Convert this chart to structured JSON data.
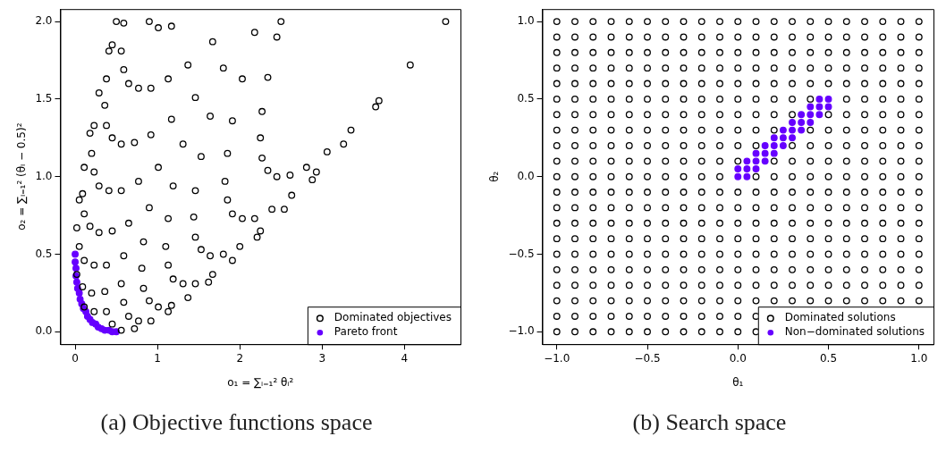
{
  "chart_data": [
    {
      "type": "scatter",
      "title": "(a) Objective functions space",
      "xlabel": "o₁ = ∑ᵢ₌₁² θᵢ²",
      "ylabel": "o₂ = ∑ᵢ₌₁² (θᵢ − 0.5)²",
      "xlim": [
        -0.18,
        4.68
      ],
      "ylim": [
        -0.08,
        2.08
      ],
      "xticks": [
        0,
        1,
        2,
        3,
        4
      ],
      "yticks": [
        {
          "value": 0,
          "label": "0.0"
        },
        {
          "value": 0.5,
          "label": "0.5"
        },
        {
          "value": 1,
          "label": "1.0"
        },
        {
          "value": 1.5,
          "label": "1.5"
        },
        {
          "value": 2,
          "label": "2.0"
        }
      ],
      "legend": "bottom right",
      "marker": "circle",
      "series": [
        {
          "name": "Dominated objectives",
          "color": "#000000",
          "x": [
            0.5,
            2.5,
            0.9,
            1.01,
            1.17,
            0.59,
            0.56,
            0.59,
            0.65,
            0.77,
            0.92,
            1.13,
            1.37,
            1.67,
            0.45,
            0.38,
            0.36,
            0.38,
            0.45,
            0.56,
            0.72,
            0.92,
            1.17,
            1.46,
            1.8,
            2.18,
            0.41,
            0.29,
            0.23,
            0.2,
            0.23,
            0.29,
            0.41,
            0.56,
            0.77,
            1.01,
            1.31,
            1.64,
            2.03,
            2.45,
            0.18,
            0.11,
            0.09,
            0.11,
            0.18,
            0.29,
            0.45,
            0.65,
            0.9,
            1.19,
            1.53,
            1.91,
            2.34,
            0.05,
            0.02,
            0.05,
            0.11,
            0.23,
            0.38,
            0.59,
            0.83,
            1.13,
            1.46,
            1.85,
            2.27,
            0.02,
            0.09,
            0.2,
            0.36,
            0.56,
            0.81,
            1.1,
            1.44,
            1.82,
            2.25,
            0.11,
            0.23,
            0.38,
            0.59,
            0.83,
            1.13,
            1.46,
            1.85,
            2.27,
            0.45,
            0.65,
            0.9,
            1.19,
            1.53,
            1.91,
            2.34,
            0.56,
            0.77,
            1.01,
            1.31,
            1.64,
            2.03,
            2.45,
            0.72,
            0.92,
            1.17,
            1.46,
            1.8,
            2.18,
            2.61,
            1.13,
            1.37,
            1.67,
            2.0,
            2.39,
            2.81,
            1.62,
            1.91,
            2.25,
            2.63,
            3.06,
            2.21,
            2.54,
            2.93,
            3.35,
            2.88,
            3.26,
            3.69,
            3.65,
            4.07,
            4.5
          ],
          "values": [
            2.0,
            2.0,
            2.0,
            1.96,
            1.97,
            1.99,
            1.81,
            1.69,
            1.6,
            1.57,
            1.57,
            1.63,
            1.72,
            1.87,
            1.85,
            1.63,
            1.46,
            1.33,
            1.25,
            1.21,
            1.22,
            1.27,
            1.37,
            1.51,
            1.7,
            1.93,
            1.81,
            1.54,
            1.33,
            1.15,
            1.03,
            0.94,
            0.91,
            0.91,
            0.97,
            1.06,
            1.21,
            1.39,
            1.63,
            1.9,
            1.28,
            1.06,
            0.89,
            0.76,
            0.68,
            0.64,
            0.65,
            0.7,
            0.8,
            0.94,
            1.13,
            1.36,
            1.64,
            0.85,
            0.67,
            0.55,
            0.46,
            0.43,
            0.43,
            0.49,
            0.58,
            0.73,
            0.91,
            1.15,
            1.42,
            0.37,
            0.29,
            0.25,
            0.26,
            0.31,
            0.41,
            0.55,
            0.74,
            0.97,
            1.25,
            0.16,
            0.13,
            0.13,
            0.19,
            0.28,
            0.43,
            0.61,
            0.85,
            1.12,
            0.05,
            0.1,
            0.2,
            0.34,
            0.53,
            0.76,
            1.04,
            0.01,
            0.07,
            0.16,
            0.31,
            0.49,
            0.73,
            1.0,
            0.02,
            0.07,
            0.17,
            0.31,
            0.5,
            0.73,
            1.01,
            0.13,
            0.22,
            0.37,
            0.55,
            0.79,
            1.06,
            0.32,
            0.46,
            0.65,
            0.88,
            1.16,
            0.61,
            0.79,
            1.03,
            1.3,
            0.98,
            1.21,
            1.49,
            1.45,
            1.72,
            2.0
          ]
        },
        {
          "name": "Pareto front",
          "color": "#6600ff",
          "x": [
            0,
            0,
            0.01,
            0.01,
            0.02,
            0.03,
            0.05,
            0.06,
            0.08,
            0.1,
            0.13,
            0.15,
            0.18,
            0.21,
            0.25,
            0.28,
            0.32,
            0.36,
            0.41,
            0.45,
            0.5
          ],
          "values": [
            0.5,
            0.45,
            0.41,
            0.36,
            0.32,
            0.28,
            0.25,
            0.21,
            0.18,
            0.15,
            0.13,
            0.1,
            0.08,
            0.06,
            0.05,
            0.03,
            0.02,
            0.01,
            0.01,
            0,
            0
          ]
        }
      ]
    },
    {
      "type": "scatter",
      "title": "(b) Search space",
      "xlabel": "θ₁",
      "ylabel": "θ₂",
      "xlim": [
        -1.08,
        1.08
      ],
      "ylim": [
        -1.08,
        1.08
      ],
      "xticks": [
        {
          "value": -1,
          "label": "−1.0"
        },
        {
          "value": -0.5,
          "label": "−0.5"
        },
        {
          "value": 0,
          "label": "0.0"
        },
        {
          "value": 0.5,
          "label": "0.5"
        },
        {
          "value": 1,
          "label": "1.0"
        }
      ],
      "yticks": [
        {
          "value": -1,
          "label": "−1.0"
        },
        {
          "value": -0.5,
          "label": "−0.5"
        },
        {
          "value": 0,
          "label": "0.0"
        },
        {
          "value": 0.5,
          "label": "0.5"
        },
        {
          "value": 1,
          "label": "1.0"
        }
      ],
      "legend": "bottom right",
      "marker": "circle",
      "series": [
        {
          "name": "Dominated solutions",
          "color": "#000000",
          "x": [
            -1,
            -0.9,
            -0.8,
            -0.7,
            -0.6,
            -0.5,
            -0.4,
            -0.3,
            -0.2,
            -0.1,
            0,
            0.1,
            0.2,
            0.3,
            0.4,
            0.5,
            0.6,
            0.7,
            0.8,
            0.9,
            1,
            -1,
            -0.9,
            -0.8,
            -0.7,
            -0.6,
            -0.5,
            -0.4,
            -0.3,
            -0.2,
            -0.1,
            0,
            0.1,
            0.2,
            0.3,
            0.4,
            0.5,
            0.6,
            0.7,
            0.8,
            0.9,
            1,
            -1,
            -0.9,
            -0.8,
            -0.7,
            -0.6,
            -0.5,
            -0.4,
            -0.3,
            -0.2,
            -0.1,
            0,
            0.1,
            0.2,
            0.3,
            0.4,
            0.5,
            0.6,
            0.7,
            0.8,
            0.9,
            1,
            -1,
            -0.9,
            -0.8,
            -0.7,
            -0.6,
            -0.5,
            -0.4,
            -0.3,
            -0.2,
            -0.1,
            0,
            0.1,
            0.2,
            0.3,
            0.4,
            0.5,
            0.6,
            0.7,
            0.8,
            0.9,
            1,
            -1,
            -0.9,
            -0.8,
            -0.7,
            -0.6,
            -0.5,
            -0.4,
            -0.3,
            -0.2,
            -0.1,
            0,
            0.1,
            0.2,
            0.3,
            0.4,
            0.5,
            0.6,
            0.7,
            0.8,
            0.9,
            1,
            -1,
            -0.9,
            -0.8,
            -0.7,
            -0.6,
            -0.5,
            -0.4,
            -0.3,
            -0.2,
            -0.1,
            0,
            0.1,
            0.2,
            0.3,
            0.4,
            0.6,
            0.7,
            0.8,
            0.9,
            1,
            -1,
            -0.9,
            -0.8,
            -0.7,
            -0.6,
            -0.5,
            -0.4,
            -0.3,
            -0.2,
            -0.1,
            0,
            0.1,
            0.2,
            0.3,
            0.5,
            0.6,
            0.7,
            0.8,
            0.9,
            1,
            -1,
            -0.9,
            -0.8,
            -0.7,
            -0.6,
            -0.5,
            -0.4,
            -0.3,
            -0.2,
            -0.1,
            0,
            0.1,
            0.2,
            0.4,
            0.5,
            0.6,
            0.7,
            0.8,
            0.9,
            1,
            -1,
            -0.9,
            -0.8,
            -0.7,
            -0.6,
            -0.5,
            -0.4,
            -0.3,
            -0.2,
            -0.1,
            0,
            0.1,
            0.3,
            0.4,
            0.5,
            0.6,
            0.7,
            0.8,
            0.9,
            1,
            -1,
            -0.9,
            -0.8,
            -0.7,
            -0.6,
            -0.5,
            -0.4,
            -0.3,
            -0.2,
            -0.1,
            0,
            0.2,
            0.3,
            0.4,
            0.5,
            0.6,
            0.7,
            0.8,
            0.9,
            1,
            -1,
            -0.9,
            -0.8,
            -0.7,
            -0.6,
            -0.5,
            -0.4,
            -0.3,
            -0.2,
            -0.1,
            0.1,
            0.2,
            0.3,
            0.4,
            0.5,
            0.6,
            0.7,
            0.8,
            0.9,
            1,
            -1,
            -0.9,
            -0.8,
            -0.7,
            -0.6,
            -0.5,
            -0.4,
            -0.3,
            -0.2,
            -0.1,
            0,
            0.1,
            0.2,
            0.3,
            0.4,
            0.5,
            0.6,
            0.7,
            0.8,
            0.9,
            1,
            -1,
            -0.9,
            -0.8,
            -0.7,
            -0.6,
            -0.5,
            -0.4,
            -0.3,
            -0.2,
            -0.1,
            0,
            0.1,
            0.2,
            0.3,
            0.4,
            0.5,
            0.6,
            0.7,
            0.8,
            0.9,
            1,
            -1,
            -0.9,
            -0.8,
            -0.7,
            -0.6,
            -0.5,
            -0.4,
            -0.3,
            -0.2,
            -0.1,
            0,
            0.1,
            0.2,
            0.3,
            0.4,
            0.5,
            0.6,
            0.7,
            0.8,
            0.9,
            1,
            -1,
            -0.9,
            -0.8,
            -0.7,
            -0.6,
            -0.5,
            -0.4,
            -0.3,
            -0.2,
            -0.1,
            0,
            0.1,
            0.2,
            0.3,
            0.4,
            0.5,
            0.6,
            0.7,
            0.8,
            0.9,
            1,
            -1,
            -0.9,
            -0.8,
            -0.7,
            -0.6,
            -0.5,
            -0.4,
            -0.3,
            -0.2,
            -0.1,
            0,
            0.1,
            0.2,
            0.3,
            0.4,
            0.5,
            0.6,
            0.7,
            0.8,
            0.9,
            1,
            -1,
            -0.9,
            -0.8,
            -0.7,
            -0.6,
            -0.5,
            -0.4,
            -0.3,
            -0.2,
            -0.1,
            0,
            0.1,
            0.2,
            0.3,
            0.4,
            0.5,
            0.6,
            0.7,
            0.8,
            0.9,
            1,
            -1,
            -0.9,
            -0.8,
            -0.7,
            -0.6,
            -0.5,
            -0.4,
            -0.3,
            -0.2,
            -0.1,
            0,
            0.1,
            0.2,
            0.3,
            0.4,
            0.5,
            0.6,
            0.7,
            0.8,
            0.9,
            1,
            -1,
            -0.9,
            -0.8,
            -0.7,
            -0.6,
            -0.5,
            -0.4,
            -0.3,
            -0.2,
            -0.1,
            0,
            0.1,
            0.2,
            0.3,
            0.4,
            0.5,
            0.6,
            0.7,
            0.8,
            0.9,
            1,
            -1,
            -0.9,
            -0.8,
            -0.7,
            -0.6,
            -0.5,
            -0.4,
            -0.3,
            -0.2,
            -0.1,
            0,
            0.1,
            -1,
            -0.9,
            -0.8,
            -0.7,
            -0.6,
            -0.5,
            -0.4,
            -0.3,
            -0.2,
            -0.1,
            0,
            0.1
          ],
          "values": [
            1,
            1,
            1,
            1,
            1,
            1,
            1,
            1,
            1,
            1,
            1,
            1,
            1,
            1,
            1,
            1,
            1,
            1,
            1,
            1,
            1,
            0.9,
            0.9,
            0.9,
            0.9,
            0.9,
            0.9,
            0.9,
            0.9,
            0.9,
            0.9,
            0.9,
            0.9,
            0.9,
            0.9,
            0.9,
            0.9,
            0.9,
            0.9,
            0.9,
            0.9,
            0.9,
            0.8,
            0.8,
            0.8,
            0.8,
            0.8,
            0.8,
            0.8,
            0.8,
            0.8,
            0.8,
            0.8,
            0.8,
            0.8,
            0.8,
            0.8,
            0.8,
            0.8,
            0.8,
            0.8,
            0.8,
            0.8,
            0.7,
            0.7,
            0.7,
            0.7,
            0.7,
            0.7,
            0.7,
            0.7,
            0.7,
            0.7,
            0.7,
            0.7,
            0.7,
            0.7,
            0.7,
            0.7,
            0.7,
            0.7,
            0.7,
            0.7,
            0.7,
            0.6,
            0.6,
            0.6,
            0.6,
            0.6,
            0.6,
            0.6,
            0.6,
            0.6,
            0.6,
            0.6,
            0.6,
            0.6,
            0.6,
            0.6,
            0.6,
            0.6,
            0.6,
            0.6,
            0.6,
            0.6,
            0.5,
            0.5,
            0.5,
            0.5,
            0.5,
            0.5,
            0.5,
            0.5,
            0.5,
            0.5,
            0.5,
            0.5,
            0.5,
            0.5,
            0.5,
            0.5,
            0.5,
            0.5,
            0.5,
            0.5,
            0.4,
            0.4,
            0.4,
            0.4,
            0.4,
            0.4,
            0.4,
            0.4,
            0.4,
            0.4,
            0.4,
            0.4,
            0.4,
            0.4,
            0.4,
            0.4,
            0.4,
            0.4,
            0.4,
            0.4,
            0.3,
            0.3,
            0.3,
            0.3,
            0.3,
            0.3,
            0.3,
            0.3,
            0.3,
            0.3,
            0.3,
            0.3,
            0.3,
            0.3,
            0.3,
            0.3,
            0.3,
            0.3,
            0.3,
            0.3,
            0.2,
            0.2,
            0.2,
            0.2,
            0.2,
            0.2,
            0.2,
            0.2,
            0.2,
            0.2,
            0.2,
            0.2,
            0.2,
            0.2,
            0.2,
            0.2,
            0.2,
            0.2,
            0.2,
            0.2,
            0.1,
            0.1,
            0.1,
            0.1,
            0.1,
            0.1,
            0.1,
            0.1,
            0.1,
            0.1,
            0.1,
            0.1,
            0.1,
            0.1,
            0.1,
            0.1,
            0.1,
            0.1,
            0.1,
            0.1,
            0,
            0,
            0,
            0,
            0,
            0,
            0,
            0,
            0,
            0,
            0,
            0,
            0,
            0,
            0,
            0,
            0,
            0,
            0,
            0,
            -0.1,
            -0.1,
            -0.1,
            -0.1,
            -0.1,
            -0.1,
            -0.1,
            -0.1,
            -0.1,
            -0.1,
            -0.1,
            -0.1,
            -0.1,
            -0.1,
            -0.1,
            -0.1,
            -0.1,
            -0.1,
            -0.1,
            -0.1,
            -0.1,
            -0.2,
            -0.2,
            -0.2,
            -0.2,
            -0.2,
            -0.2,
            -0.2,
            -0.2,
            -0.2,
            -0.2,
            -0.2,
            -0.2,
            -0.2,
            -0.2,
            -0.2,
            -0.2,
            -0.2,
            -0.2,
            -0.2,
            -0.2,
            -0.2,
            -0.3,
            -0.3,
            -0.3,
            -0.3,
            -0.3,
            -0.3,
            -0.3,
            -0.3,
            -0.3,
            -0.3,
            -0.3,
            -0.3,
            -0.3,
            -0.3,
            -0.3,
            -0.3,
            -0.3,
            -0.3,
            -0.3,
            -0.3,
            -0.3,
            -0.4,
            -0.4,
            -0.4,
            -0.4,
            -0.4,
            -0.4,
            -0.4,
            -0.4,
            -0.4,
            -0.4,
            -0.4,
            -0.4,
            -0.4,
            -0.4,
            -0.4,
            -0.4,
            -0.4,
            -0.4,
            -0.4,
            -0.4,
            -0.4,
            -0.5,
            -0.5,
            -0.5,
            -0.5,
            -0.5,
            -0.5,
            -0.5,
            -0.5,
            -0.5,
            -0.5,
            -0.5,
            -0.5,
            -0.5,
            -0.5,
            -0.5,
            -0.5,
            -0.5,
            -0.5,
            -0.5,
            -0.5,
            -0.5,
            -0.6,
            -0.6,
            -0.6,
            -0.6,
            -0.6,
            -0.6,
            -0.6,
            -0.6,
            -0.6,
            -0.6,
            -0.6,
            -0.6,
            -0.6,
            -0.6,
            -0.6,
            -0.6,
            -0.6,
            -0.6,
            -0.6,
            -0.6,
            -0.6,
            -0.7,
            -0.7,
            -0.7,
            -0.7,
            -0.7,
            -0.7,
            -0.7,
            -0.7,
            -0.7,
            -0.7,
            -0.7,
            -0.7,
            -0.7,
            -0.7,
            -0.7,
            -0.7,
            -0.7,
            -0.7,
            -0.7,
            -0.7,
            -0.7,
            -0.8,
            -0.8,
            -0.8,
            -0.8,
            -0.8,
            -0.8,
            -0.8,
            -0.8,
            -0.8,
            -0.8,
            -0.8,
            -0.8,
            -0.8,
            -0.8,
            -0.8,
            -0.8,
            -0.8,
            -0.8,
            -0.8,
            -0.8,
            -0.8,
            -0.9,
            -0.9,
            -0.9,
            -0.9,
            -0.9,
            -0.9,
            -0.9,
            -0.9,
            -0.9,
            -0.9,
            -0.9,
            -0.9,
            -1,
            -1,
            -1,
            -1,
            -1,
            -1,
            -1,
            -1,
            -1,
            -1,
            -1,
            -1
          ]
        },
        {
          "name": "Non−dominated solutions",
          "color": "#6600ff",
          "x": [
            0,
            0.05,
            0,
            0.05,
            0.1,
            0.05,
            0.1,
            0.15,
            0.1,
            0.15,
            0.2,
            0.15,
            0.2,
            0.25,
            0.2,
            0.25,
            0.3,
            0.25,
            0.3,
            0.35,
            0.3,
            0.35,
            0.4,
            0.35,
            0.4,
            0.45,
            0.4,
            0.45,
            0.5,
            0.45,
            0.5
          ],
          "values": [
            0,
            0,
            0.05,
            0.05,
            0.05,
            0.1,
            0.1,
            0.1,
            0.15,
            0.15,
            0.15,
            0.2,
            0.2,
            0.2,
            0.25,
            0.25,
            0.25,
            0.3,
            0.3,
            0.3,
            0.35,
            0.35,
            0.35,
            0.4,
            0.4,
            0.4,
            0.45,
            0.45,
            0.45,
            0.5,
            0.5
          ]
        }
      ]
    }
  ]
}
